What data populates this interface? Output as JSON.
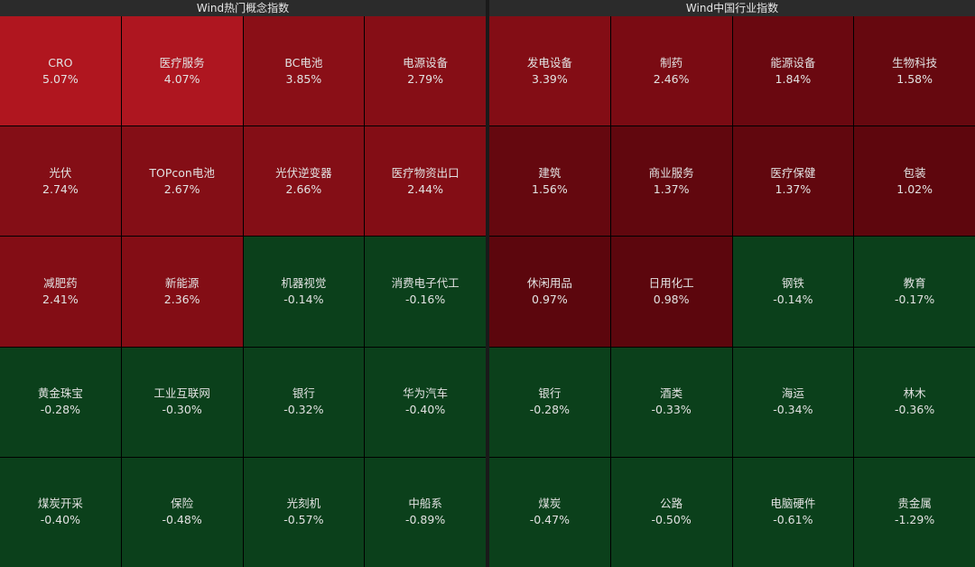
{
  "panels": [
    {
      "title": "Wind热门概念指数",
      "cells": [
        {
          "label": "CRO",
          "value": "5.07%",
          "color": "#b0161f"
        },
        {
          "label": "医疗服务",
          "value": "4.07%",
          "color": "#ae1620"
        },
        {
          "label": "BC电池",
          "value": "3.85%",
          "color": "#8a0f17"
        },
        {
          "label": "电源设备",
          "value": "2.79%",
          "color": "#860e16"
        },
        {
          "label": "光伏",
          "value": "2.74%",
          "color": "#840e16"
        },
        {
          "label": "TOPcon电池",
          "value": "2.67%",
          "color": "#840e16"
        },
        {
          "label": "光伏逆变器",
          "value": "2.66%",
          "color": "#840e16"
        },
        {
          "label": "医疗物资出口",
          "value": "2.44%",
          "color": "#830d15"
        },
        {
          "label": "减肥药",
          "value": "2.41%",
          "color": "#830d15"
        },
        {
          "label": "新能源",
          "value": "2.36%",
          "color": "#830d15"
        },
        {
          "label": "机器视觉",
          "value": "-0.14%",
          "color": "#0b401b"
        },
        {
          "label": "消费电子代工",
          "value": "-0.16%",
          "color": "#0b401b"
        },
        {
          "label": "黄金珠宝",
          "value": "-0.28%",
          "color": "#0b401b"
        },
        {
          "label": "工业互联网",
          "value": "-0.30%",
          "color": "#0b401b"
        },
        {
          "label": "银行",
          "value": "-0.32%",
          "color": "#0b401b"
        },
        {
          "label": "华为汽车",
          "value": "-0.40%",
          "color": "#0b401b"
        },
        {
          "label": "煤炭开采",
          "value": "-0.40%",
          "color": "#0b401b"
        },
        {
          "label": "保险",
          "value": "-0.48%",
          "color": "#0b401b"
        },
        {
          "label": "光刻机",
          "value": "-0.57%",
          "color": "#0b401b"
        },
        {
          "label": "中船系",
          "value": "-0.89%",
          "color": "#0b401b"
        }
      ]
    },
    {
      "title": "Wind中国行业指数",
      "cells": [
        {
          "label": "发电设备",
          "value": "3.39%",
          "color": "#830d15"
        },
        {
          "label": "制药",
          "value": "2.46%",
          "color": "#7a0b13"
        },
        {
          "label": "能源设备",
          "value": "1.84%",
          "color": "#6a0810"
        },
        {
          "label": "生物科技",
          "value": "1.58%",
          "color": "#66080f"
        },
        {
          "label": "建筑",
          "value": "1.56%",
          "color": "#65080f"
        },
        {
          "label": "商业服务",
          "value": "1.37%",
          "color": "#61070e"
        },
        {
          "label": "医疗保健",
          "value": "1.37%",
          "color": "#61070e"
        },
        {
          "label": "包装",
          "value": "1.02%",
          "color": "#5e060d"
        },
        {
          "label": "休闲用品",
          "value": "0.97%",
          "color": "#5c060d"
        },
        {
          "label": "日用化工",
          "value": "0.98%",
          "color": "#5c060d"
        },
        {
          "label": "钢铁",
          "value": "-0.14%",
          "color": "#0b401b"
        },
        {
          "label": "教育",
          "value": "-0.17%",
          "color": "#0b401b"
        },
        {
          "label": "银行",
          "value": "-0.28%",
          "color": "#0b401b"
        },
        {
          "label": "酒类",
          "value": "-0.33%",
          "color": "#0b401b"
        },
        {
          "label": "海运",
          "value": "-0.34%",
          "color": "#0b401b"
        },
        {
          "label": "林木",
          "value": "-0.36%",
          "color": "#0b401b"
        },
        {
          "label": "煤炭",
          "value": "-0.47%",
          "color": "#0b401b"
        },
        {
          "label": "公路",
          "value": "-0.50%",
          "color": "#0b401b"
        },
        {
          "label": "电脑硬件",
          "value": "-0.61%",
          "color": "#0b401b"
        },
        {
          "label": "贵金属",
          "value": "-1.29%",
          "color": "#0b401b"
        }
      ]
    }
  ]
}
